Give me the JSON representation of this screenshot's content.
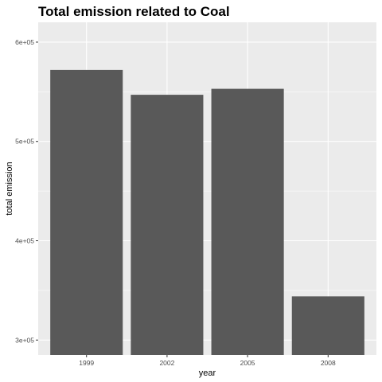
{
  "chart_data": {
    "type": "bar",
    "title": "Total emission related to Coal",
    "xlabel": "year",
    "ylabel": "total emission",
    "categories": [
      "1999",
      "2002",
      "2005",
      "2008"
    ],
    "values": [
      572000,
      547000,
      553000,
      344000
    ],
    "ylim": [
      285000,
      620000
    ],
    "yticks": [
      300000,
      400000,
      500000,
      600000
    ],
    "ytick_labels": [
      "3e+05",
      "4e+05",
      "5e+05",
      "6e+05"
    ],
    "grid": true,
    "colors": {
      "bar": "#595959",
      "panel": "#ebebeb",
      "grid": "#ffffff"
    }
  }
}
